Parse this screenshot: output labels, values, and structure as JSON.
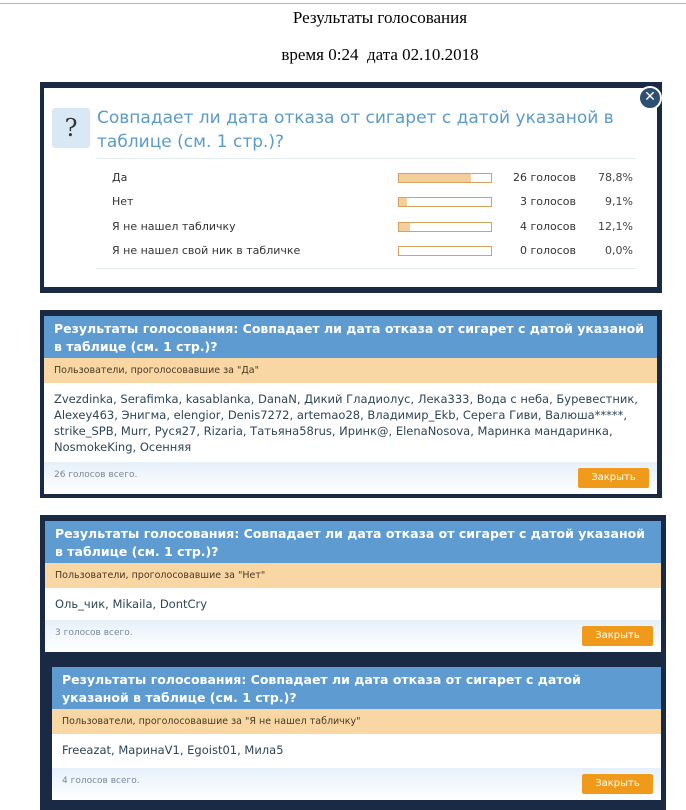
{
  "document": {
    "title": "Результаты голосования",
    "time_date": "время 0:24  дата 02.10.2018"
  },
  "poll": {
    "question": "Совпадает ли дата отказа от сигарет с датой указаной в таблице (см. 1 стр.)?",
    "options": [
      {
        "label": "Да",
        "votes": "26 голосов",
        "percent": "78,8%",
        "fill": 78.8
      },
      {
        "label": "Нет",
        "votes": "3 голосов",
        "percent": "9,1%",
        "fill": 9.1
      },
      {
        "label": "Я не нашел табличку",
        "votes": "4 голосов",
        "percent": "12,1%",
        "fill": 12.1
      },
      {
        "label": "Я не нашел свой ник в табличке",
        "votes": "0 голосов",
        "percent": "0,0%",
        "fill": 0
      }
    ]
  },
  "results": [
    {
      "header": "Результаты голосования: Совпадает ли дата отказа от сигарет с датой указаной в таблице (см. 1 стр.)?",
      "subheader": "Пользователи, проголосовавшие за \"Да\"",
      "names": "Zvezdinka, Serafimka, kasablanka, DanaN, Дикий Гладиолус, Лека333, Вода с неба, Буревестник, Alexey463, Энигма, elengior, Denis7272, artemao28, Владимир_Ekb, Серега Гиви, Валюша*****, strike_SPB, Murr, Руся27, Rizaria, Татьяна58rus, Иринк@, ElenaNosova, Маринка мандаринка, NosmokeKing, Осенняя",
      "total": "26 голосов всего.",
      "close": "Закрыть"
    },
    {
      "header": "Результаты голосования: Совпадает ли дата отказа от сигарет с датой указаной в таблице (см. 1 стр.)?",
      "subheader": "Пользователи, проголосовавшие за \"Нет\"",
      "names": "Оль_чик, Mikaila, DontCry",
      "total": "3 голосов всего.",
      "close": "Закрыть"
    },
    {
      "header": "Результаты голосования: Совпадает ли дата отказа от сигарет с датой указаной в таблице (см. 1 стр.)?",
      "subheader": "Пользователи, проголосовавшие за \"Я не нашел табличку\"",
      "names": "Freeazat, МаринаV1, Egoist01, Мила5",
      "total": "4 голосов всего.",
      "close": "Закрыть"
    }
  ],
  "colors": {
    "frame": "#1b2a44",
    "header": "#5e9bd0",
    "subheader": "#f8d7a5",
    "button": "#ef9a1a",
    "question": "#5b9bc9"
  }
}
